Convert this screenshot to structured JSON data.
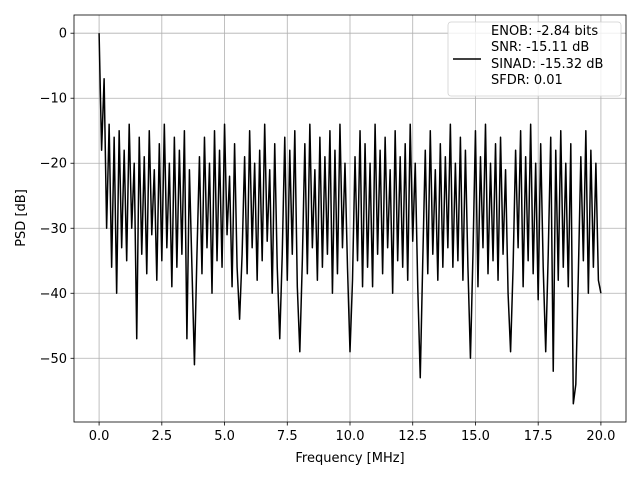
{
  "chart_data": {
    "type": "line",
    "x_label": "Frequency [MHz]",
    "y_label": "PSD [dB]",
    "xlim": [
      -1.0,
      21.0
    ],
    "ylim": [
      -59.8,
      2.8
    ],
    "xticks": [
      {
        "value": 0,
        "label": "0.0"
      },
      2.5,
      {
        "value": 5,
        "label": "5.0"
      },
      7.5,
      {
        "value": 10,
        "label": "10.0"
      },
      12.5,
      {
        "value": 15,
        "label": "15.0"
      },
      17.5,
      {
        "value": 20,
        "label": "20.0"
      }
    ],
    "yticks": [
      0,
      {
        "value": -10,
        "label": "−10"
      },
      {
        "value": -20,
        "label": "−20"
      },
      {
        "value": -30,
        "label": "−30"
      },
      {
        "value": -40,
        "label": "−40"
      },
      {
        "value": -50,
        "label": "−50"
      }
    ],
    "grid": true,
    "legend": "upper right",
    "x": [
      0,
      0.1,
      0.2,
      0.3,
      0.4,
      0.5,
      0.6,
      0.7,
      0.8,
      0.9,
      1,
      1.1,
      1.2,
      1.3,
      1.4,
      1.5,
      1.6,
      1.7,
      1.8,
      1.9,
      2,
      2.1,
      2.2,
      2.3,
      2.4,
      2.5,
      2.6,
      2.7,
      2.8,
      2.9,
      3,
      3.1,
      3.2,
      3.3,
      3.4,
      3.5,
      3.6,
      3.7,
      3.8,
      3.9,
      4,
      4.1,
      4.2,
      4.3,
      4.4,
      4.5,
      4.6,
      4.7,
      4.8,
      4.9,
      5,
      5.1,
      5.2,
      5.3,
      5.4,
      5.5,
      5.6,
      5.7,
      5.8,
      5.9,
      6,
      6.1,
      6.2,
      6.3,
      6.4,
      6.5,
      6.6,
      6.7,
      6.8,
      6.9,
      7,
      7.1,
      7.2,
      7.3,
      7.4,
      7.5,
      7.6,
      7.7,
      7.8,
      7.9,
      8,
      8.1,
      8.2,
      8.3,
      8.4,
      8.5,
      8.6,
      8.7,
      8.8,
      8.9,
      9,
      9.1,
      9.2,
      9.3,
      9.4,
      9.5,
      9.6,
      9.7,
      9.8,
      9.9,
      10,
      10.1,
      10.2,
      10.3,
      10.4,
      10.5,
      10.6,
      10.7,
      10.8,
      10.9,
      11,
      11.1,
      11.2,
      11.3,
      11.4,
      11.5,
      11.6,
      11.7,
      11.8,
      11.9,
      12,
      12.1,
      12.2,
      12.3,
      12.4,
      12.5,
      12.6,
      12.7,
      12.8,
      12.9,
      13,
      13.1,
      13.2,
      13.3,
      13.4,
      13.5,
      13.6,
      13.7,
      13.8,
      13.9,
      14,
      14.1,
      14.2,
      14.3,
      14.4,
      14.5,
      14.6,
      14.7,
      14.8,
      14.9,
      15,
      15.1,
      15.2,
      15.3,
      15.4,
      15.5,
      15.6,
      15.7,
      15.8,
      15.9,
      16,
      16.1,
      16.2,
      16.3,
      16.4,
      16.5,
      16.6,
      16.7,
      16.8,
      16.9,
      17,
      17.1,
      17.2,
      17.3,
      17.4,
      17.5,
      17.6,
      17.7,
      17.8,
      17.9,
      18,
      18.1,
      18.2,
      18.3,
      18.4,
      18.5,
      18.6,
      18.7,
      18.8,
      18.9,
      19,
      19.1,
      19.2,
      19.3,
      19.4,
      19.5,
      19.6,
      19.7,
      19.8,
      19.9,
      20
    ],
    "series": [
      {
        "name": "ENOB: -2.84 bits\nSNR: -15.11 dB\nSINAD: -15.32 dB\nSFDR: 0.01",
        "color": "#000000",
        "values": [
          0,
          -18,
          -7,
          -30,
          -14,
          -36,
          -16,
          -40,
          -15,
          -33,
          -18,
          -35,
          -14,
          -30,
          -20,
          -47,
          -16,
          -34,
          -19,
          -37,
          -15,
          -31,
          -21,
          -38,
          -17,
          -35,
          -14,
          -33,
          -20,
          -39,
          -16,
          -36,
          -18,
          -34,
          -15,
          -47,
          -21,
          -36,
          -51,
          -34,
          -19,
          -37,
          -16,
          -33,
          -20,
          -40,
          -15,
          -35,
          -18,
          -36,
          -14,
          -31,
          -22,
          -39,
          -17,
          -36,
          -44,
          -34,
          -19,
          -37,
          -15,
          -33,
          -20,
          -38,
          -18,
          -35,
          -14,
          -32,
          -21,
          -40,
          -17,
          -36,
          -47,
          -34,
          -16,
          -38,
          -18,
          -34,
          -15,
          -39,
          -49,
          -35,
          -17,
          -37,
          -14,
          -33,
          -21,
          -38,
          -16,
          -36,
          -19,
          -34,
          -15,
          -40,
          -18,
          -37,
          -14,
          -33,
          -20,
          -36,
          -49,
          -38,
          -19,
          -35,
          -15,
          -39,
          -17,
          -36,
          -20,
          -39,
          -14,
          -34,
          -18,
          -37,
          -16,
          -33,
          -21,
          -40,
          -15,
          -35,
          -19,
          -36,
          -17,
          -38,
          -14,
          -32,
          -20,
          -39,
          -53,
          -35,
          -18,
          -37,
          -15,
          -34,
          -21,
          -38,
          -17,
          -36,
          -19,
          -33,
          -14,
          -36,
          -20,
          -35,
          -16,
          -38,
          -18,
          -36,
          -50,
          -34,
          -15,
          -39,
          -19,
          -33,
          -14,
          -37,
          -20,
          -35,
          -17,
          -38,
          -16,
          -34,
          -21,
          -40,
          -49,
          -36,
          -18,
          -33,
          -15,
          -39,
          -19,
          -35,
          -14,
          -37,
          -20,
          -41,
          -17,
          -36,
          -49,
          -34,
          -16,
          -52,
          -18,
          -38,
          -15,
          -36,
          -20,
          -39,
          -17,
          -57,
          -54,
          -37,
          -19,
          -35,
          -15,
          -40,
          -18,
          -36,
          -20,
          -38,
          -40
        ]
      }
    ]
  }
}
